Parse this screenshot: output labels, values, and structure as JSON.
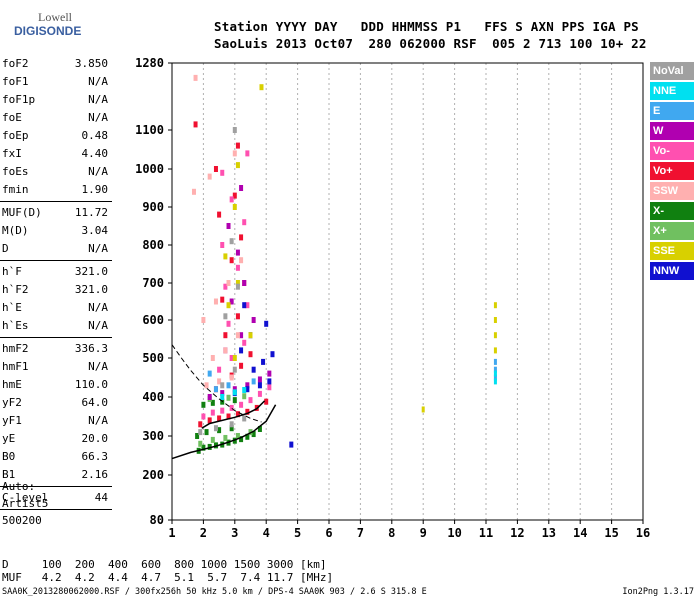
{
  "logo": {
    "line1": "Lowell",
    "line2": "DIGISONDE"
  },
  "header": {
    "line1": "Station YYYY DAY   DDD HHMMSS P1   FFS S AXN PPS IGA PS",
    "line2": "SaoLuis 2013 Oct07  280 062000 RSF  005 2 713 100 10+ 22"
  },
  "params": [
    {
      "group": 1,
      "key": "foF2",
      "value": "3.850"
    },
    {
      "group": 1,
      "key": "foF1",
      "value": "N/A"
    },
    {
      "group": 1,
      "key": "foF1p",
      "value": "N/A"
    },
    {
      "group": 1,
      "key": "foE",
      "value": "N/A"
    },
    {
      "group": 1,
      "key": "foEp",
      "value": "0.48"
    },
    {
      "group": 1,
      "key": "fxI",
      "value": "4.40"
    },
    {
      "group": 1,
      "key": "foEs",
      "value": "N/A"
    },
    {
      "group": 1,
      "key": "fmin",
      "value": "1.90"
    },
    {
      "group": 2,
      "key": "MUF(D)",
      "value": "11.72"
    },
    {
      "group": 2,
      "key": "M(D)",
      "value": "3.04"
    },
    {
      "group": 2,
      "key": "D",
      "value": "N/A"
    },
    {
      "group": 3,
      "key": "h`F",
      "value": "321.0"
    },
    {
      "group": 3,
      "key": "h`F2",
      "value": "321.0"
    },
    {
      "group": 3,
      "key": "h`E",
      "value": "N/A"
    },
    {
      "group": 3,
      "key": "h`Es",
      "value": "N/A"
    },
    {
      "group": 4,
      "key": "hmF2",
      "value": "336.3"
    },
    {
      "group": 4,
      "key": "hmF1",
      "value": "N/A"
    },
    {
      "group": 4,
      "key": "hmE",
      "value": "110.0"
    },
    {
      "group": 4,
      "key": "yF2",
      "value": "64.0"
    },
    {
      "group": 4,
      "key": "yF1",
      "value": "N/A"
    },
    {
      "group": 4,
      "key": "yE",
      "value": "20.0"
    },
    {
      "group": 4,
      "key": "B0",
      "value": "66.3"
    },
    {
      "group": 4,
      "key": "B1",
      "value": "2.16"
    },
    {
      "group": 5,
      "key": "C-level",
      "value": "44"
    }
  ],
  "auto": {
    "line1": "Auto:",
    "line2": "Artist5",
    "line3": "500200"
  },
  "legend": [
    {
      "label": "NoVal",
      "color": "#a0a0a0"
    },
    {
      "label": "NNE",
      "color": "#00e0f0"
    },
    {
      "label": "E",
      "color": "#40a8f0"
    },
    {
      "label": "W",
      "color": "#b000b0"
    },
    {
      "label": "Vo-",
      "color": "#ff50b0"
    },
    {
      "label": "Vo+",
      "color": "#f01030"
    },
    {
      "label": "SSW",
      "color": "#ffb0b0"
    },
    {
      "label": "X-",
      "color": "#108010"
    },
    {
      "label": "X+",
      "color": "#70c060"
    },
    {
      "label": "SSE",
      "color": "#d8d000"
    },
    {
      "label": "NNW",
      "color": "#1010d0"
    }
  ],
  "bottom": {
    "line1": "D     100  200  400  600  800 1000 1500 3000 [km]",
    "line2": "MUF   4.2  4.2  4.4  4.7  5.1  5.7  7.4 11.7 [MHz]"
  },
  "footer": {
    "left": "SAA0K_2013280062000.RSF / 300fx256h 50 kHz 5.0 km / DPS-4 SAA0K 903 / 2.6 S 315.8 E",
    "right": "Ion2Png 1.3.17"
  },
  "chart_data": {
    "type": "scatter",
    "xlim": [
      1,
      16
    ],
    "ylim": [
      80,
      1280
    ],
    "x_ticks": [
      1,
      2,
      3,
      4,
      5,
      6,
      7,
      8,
      9,
      10,
      11,
      12,
      13,
      14,
      15,
      16
    ],
    "y_ticks": [
      80,
      200,
      300,
      400,
      500,
      600,
      700,
      800,
      900,
      1000,
      1100,
      1280
    ],
    "grid": "vertical dashed",
    "series": [
      {
        "name": "X-",
        "color": "#108010",
        "points": [
          [
            1.85,
            262
          ],
          [
            2.0,
            270
          ],
          [
            2.2,
            272
          ],
          [
            2.4,
            276
          ],
          [
            2.6,
            278
          ],
          [
            2.8,
            283
          ],
          [
            3.0,
            288
          ],
          [
            3.2,
            292
          ],
          [
            3.4,
            298
          ],
          [
            3.6,
            305
          ],
          [
            3.8,
            318
          ],
          [
            1.8,
            300
          ],
          [
            2.1,
            310
          ],
          [
            2.5,
            315
          ],
          [
            2.9,
            320
          ],
          [
            2.0,
            380
          ],
          [
            2.3,
            385
          ],
          [
            2.6,
            388
          ],
          [
            3.0,
            392
          ]
        ]
      },
      {
        "name": "X+",
        "color": "#70c060",
        "points": [
          [
            1.9,
            280
          ],
          [
            2.3,
            290
          ],
          [
            2.7,
            295
          ],
          [
            3.1,
            300
          ],
          [
            3.5,
            310
          ],
          [
            2.2,
            395
          ],
          [
            2.8,
            398
          ],
          [
            3.3,
            402
          ]
        ]
      },
      {
        "name": "Vo+",
        "color": "#f01030",
        "points": [
          [
            1.9,
            330
          ],
          [
            2.2,
            340
          ],
          [
            2.5,
            345
          ],
          [
            2.8,
            350
          ],
          [
            3.1,
            356
          ],
          [
            3.4,
            362
          ],
          [
            3.7,
            372
          ],
          [
            4.0,
            388
          ],
          [
            2.4,
            420
          ],
          [
            2.9,
            455
          ],
          [
            3.2,
            480
          ],
          [
            3.5,
            510
          ],
          [
            2.7,
            560
          ],
          [
            3.1,
            610
          ],
          [
            2.6,
            655
          ],
          [
            3.3,
            700
          ],
          [
            2.9,
            760
          ],
          [
            3.2,
            820
          ],
          [
            2.5,
            880
          ],
          [
            3.0,
            930
          ],
          [
            2.4,
            1000
          ],
          [
            3.1,
            1060
          ],
          [
            1.75,
            1115
          ]
        ]
      },
      {
        "name": "Vo-",
        "color": "#ff50b0",
        "points": [
          [
            2.0,
            350
          ],
          [
            2.3,
            360
          ],
          [
            2.6,
            365
          ],
          [
            2.9,
            372
          ],
          [
            3.2,
            380
          ],
          [
            3.5,
            392
          ],
          [
            3.8,
            408
          ],
          [
            4.1,
            425
          ],
          [
            2.5,
            470
          ],
          [
            2.9,
            500
          ],
          [
            3.3,
            540
          ],
          [
            2.8,
            590
          ],
          [
            3.4,
            640
          ],
          [
            2.7,
            690
          ],
          [
            3.1,
            740
          ],
          [
            2.6,
            800
          ],
          [
            3.3,
            860
          ],
          [
            2.9,
            920
          ],
          [
            2.6,
            990
          ],
          [
            3.4,
            1040
          ]
        ]
      },
      {
        "name": "W",
        "color": "#b000b0",
        "points": [
          [
            2.2,
            400
          ],
          [
            2.6,
            410
          ],
          [
            3.0,
            420
          ],
          [
            3.4,
            430
          ],
          [
            3.8,
            445
          ],
          [
            4.1,
            460
          ],
          [
            2.7,
            520
          ],
          [
            3.2,
            560
          ],
          [
            3.6,
            600
          ],
          [
            2.9,
            650
          ],
          [
            3.3,
            700
          ],
          [
            3.1,
            780
          ],
          [
            2.8,
            850
          ],
          [
            3.2,
            950
          ]
        ]
      },
      {
        "name": "NNW",
        "color": "#1010d0",
        "points": [
          [
            3.0,
            410
          ],
          [
            3.4,
            420
          ],
          [
            3.8,
            430
          ],
          [
            4.1,
            440
          ],
          [
            3.6,
            470
          ],
          [
            3.9,
            490
          ],
          [
            4.2,
            510
          ],
          [
            3.2,
            520
          ],
          [
            3.5,
            560
          ],
          [
            4.0,
            590
          ],
          [
            3.3,
            640
          ],
          [
            4.8,
            278
          ]
        ]
      },
      {
        "name": "SSW",
        "color": "#ffb0b0",
        "points": [
          [
            2.1,
            430
          ],
          [
            2.5,
            440
          ],
          [
            2.9,
            450
          ],
          [
            2.3,
            500
          ],
          [
            2.7,
            520
          ],
          [
            3.1,
            560
          ],
          [
            2.0,
            600
          ],
          [
            2.4,
            650
          ],
          [
            2.8,
            700
          ],
          [
            3.2,
            760
          ],
          [
            1.7,
            940
          ],
          [
            2.2,
            980
          ],
          [
            3.0,
            1040
          ],
          [
            1.75,
            1240
          ]
        ]
      },
      {
        "name": "E",
        "color": "#40a8f0",
        "points": [
          [
            2.4,
            420
          ],
          [
            2.8,
            430
          ],
          [
            3.6,
            440
          ],
          [
            2.2,
            460
          ],
          [
            11.3,
            450
          ],
          [
            11.3,
            470
          ],
          [
            11.3,
            490
          ]
        ]
      },
      {
        "name": "NNE",
        "color": "#00e0f0",
        "points": [
          [
            2.6,
            400
          ],
          [
            3.0,
            412
          ],
          [
            3.3,
            418
          ],
          [
            11.3,
            440
          ],
          [
            11.3,
            460
          ]
        ]
      },
      {
        "name": "SSE",
        "color": "#d8d000",
        "points": [
          [
            3.0,
            500
          ],
          [
            3.5,
            560
          ],
          [
            2.8,
            640
          ],
          [
            3.1,
            700
          ],
          [
            2.7,
            770
          ],
          [
            3.0,
            900
          ],
          [
            3.1,
            1010
          ],
          [
            3.85,
            1215
          ],
          [
            9.0,
            368
          ],
          [
            11.3,
            520
          ],
          [
            11.3,
            560
          ],
          [
            11.3,
            600
          ],
          [
            11.3,
            640
          ]
        ]
      },
      {
        "name": "NoVal",
        "color": "#a0a0a0",
        "points": [
          [
            1.9,
            310
          ],
          [
            2.4,
            320
          ],
          [
            2.9,
            330
          ],
          [
            3.3,
            345
          ],
          [
            2.6,
            430
          ],
          [
            3.0,
            470
          ],
          [
            2.7,
            610
          ],
          [
            3.1,
            690
          ],
          [
            2.9,
            810
          ],
          [
            3.0,
            1100
          ]
        ]
      }
    ],
    "x_trace": {
      "points": [
        [
          1.0,
          242
        ],
        [
          1.6,
          258
        ],
        [
          2.0,
          266
        ],
        [
          2.4,
          274
        ],
        [
          2.8,
          284
        ],
        [
          3.2,
          296
        ],
        [
          3.6,
          312
        ],
        [
          4.0,
          338
        ],
        [
          4.3,
          380
        ]
      ]
    },
    "o_trace": {
      "points": [
        [
          1.95,
          320
        ],
        [
          2.2,
          332
        ],
        [
          2.6,
          340
        ],
        [
          3.0,
          348
        ],
        [
          3.4,
          358
        ],
        [
          3.7,
          370
        ],
        [
          3.95,
          390
        ]
      ]
    },
    "profile": {
      "points": [
        [
          1.0,
          535
        ],
        [
          1.3,
          500
        ],
        [
          1.6,
          468
        ],
        [
          2.0,
          430
        ],
        [
          2.5,
          395
        ],
        [
          3.0,
          365
        ],
        [
          3.5,
          345
        ],
        [
          3.85,
          336
        ]
      ]
    }
  }
}
